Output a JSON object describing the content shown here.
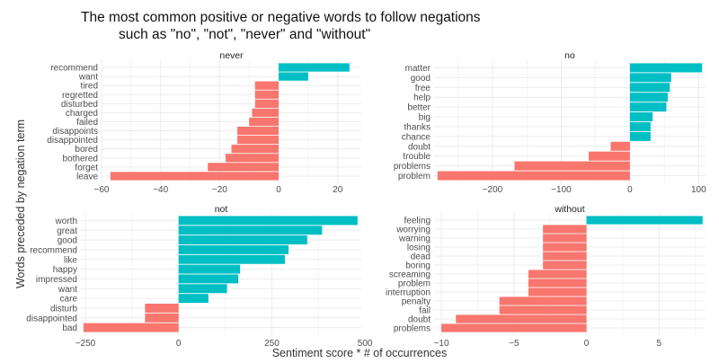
{
  "title_line1": "The most common positive or negative words to follow negations",
  "title_line2": "such as \"no\", \"not\", \"never\" and \"without\"",
  "ylabel": "Words preceded by negation term",
  "xlabel": "Sentiment score * # of occurrences",
  "colors": {
    "positive": "#00bfc4",
    "negative": "#f8766d",
    "grid": "#ececec"
  },
  "chart_data": [
    {
      "type": "bar",
      "orientation": "horizontal",
      "panel": "never",
      "categories": [
        "recommend",
        "want",
        "tired",
        "regretted",
        "disturbed",
        "charged",
        "failed",
        "disappoints",
        "disappointed",
        "bored",
        "bothered",
        "forget",
        "leave"
      ],
      "values": [
        24,
        10,
        -8,
        -8,
        -8,
        -9,
        -10,
        -14,
        -14,
        -16,
        -18,
        -24,
        -57
      ],
      "xlim": [
        -60,
        28
      ],
      "xticks": [
        -60,
        -40,
        -20,
        0,
        20
      ]
    },
    {
      "type": "bar",
      "orientation": "horizontal",
      "panel": "no",
      "categories": [
        "matter",
        "good",
        "free",
        "help",
        "better",
        "big",
        "thanks",
        "chance",
        "doubt",
        "trouble",
        "problems",
        "problem"
      ],
      "values": [
        105,
        60,
        58,
        55,
        53,
        33,
        30,
        30,
        -28,
        -60,
        -168,
        -280
      ],
      "xlim": [
        -285,
        110
      ],
      "xticks": [
        -200,
        -100,
        0,
        100
      ]
    },
    {
      "type": "bar",
      "orientation": "horizontal",
      "panel": "not",
      "categories": [
        "worth",
        "great",
        "good",
        "recommend",
        "like",
        "happy",
        "impressed",
        "want",
        "care",
        "disturb",
        "disappointed",
        "bad"
      ],
      "values": [
        480,
        385,
        345,
        295,
        285,
        165,
        160,
        130,
        80,
        -90,
        -90,
        -255
      ],
      "xlim": [
        -262,
        490
      ],
      "xticks": [
        -250,
        0,
        250,
        500
      ]
    },
    {
      "type": "bar",
      "orientation": "horizontal",
      "panel": "without",
      "categories": [
        "feeling",
        "worrying",
        "warning",
        "losing",
        "dead",
        "boring",
        "screaming",
        "problem",
        "interruption",
        "penalty",
        "fail",
        "doubt",
        "problems"
      ],
      "values": [
        8,
        -3,
        -3,
        -3,
        -3,
        -3,
        -4,
        -4,
        -4,
        -6,
        -6,
        -9,
        -10
      ],
      "xlim": [
        -10.5,
        8.2
      ],
      "xticks": [
        -10,
        -5,
        0,
        5
      ]
    }
  ]
}
